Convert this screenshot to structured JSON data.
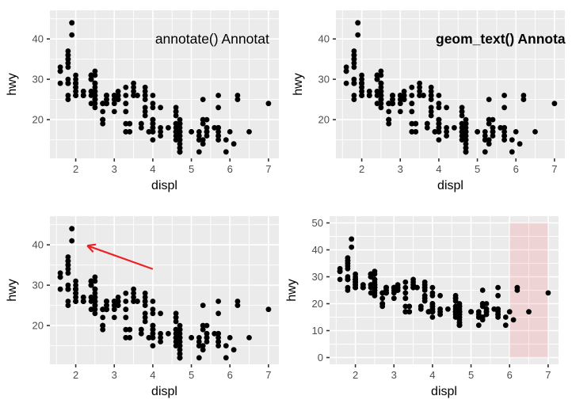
{
  "figure": {
    "description": "2x2 grid of ggplot-style scatterplots of engine displacement vs highway mpg with different annotation methods",
    "colors": {
      "panel_bg": "#EBEBEB",
      "grid": "#FFFFFF",
      "point": "#000000",
      "tick_label": "#4D4D4D",
      "tick_mark": "#333333",
      "axis_title": "#000000",
      "annotation_red": "#ED2224",
      "shade_fill": "#FF0000",
      "shade_opacity": 0.1
    }
  },
  "chart_data": {
    "type": "scatter",
    "points": {
      "displ": [
        1.8,
        1.8,
        2.0,
        2.0,
        2.8,
        2.8,
        3.1,
        1.8,
        1.8,
        2.0,
        2.0,
        2.8,
        2.8,
        3.1,
        2.8,
        3.1,
        4.2,
        5.3,
        5.3,
        5.3,
        5.7,
        6.0,
        5.7,
        5.7,
        6.2,
        6.2,
        7.0,
        5.3,
        5.3,
        5.7,
        6.5,
        2.4,
        2.4,
        3.1,
        3.5,
        3.6,
        2.4,
        3.0,
        3.3,
        3.3,
        3.3,
        3.3,
        3.3,
        3.8,
        3.8,
        3.8,
        4.0,
        3.7,
        3.7,
        3.9,
        3.9,
        4.7,
        4.7,
        4.7,
        5.2,
        5.2,
        3.9,
        4.7,
        4.7,
        4.7,
        4.7,
        4.7,
        5.2,
        5.7,
        5.9,
        4.7,
        4.7,
        4.7,
        4.7,
        4.7,
        4.7,
        4.7,
        4.7,
        5.2,
        5.2,
        5.7,
        5.9,
        4.6,
        5.4,
        5.4,
        4.0,
        4.0,
        4.0,
        4.0,
        4.6,
        5.0,
        4.2,
        4.2,
        4.6,
        4.6,
        4.6,
        4.6,
        5.4,
        3.8,
        3.8,
        4.0,
        4.0,
        4.6,
        4.6,
        4.6,
        4.6,
        5.4,
        1.6,
        1.6,
        1.6,
        1.6,
        1.6,
        1.8,
        1.8,
        1.8,
        2.0,
        2.4,
        2.4,
        2.4,
        2.4,
        2.5,
        2.5,
        3.3,
        2.0,
        2.0,
        2.0,
        2.0,
        2.7,
        2.7,
        2.7,
        3.0,
        3.7,
        4.0,
        4.7,
        4.7,
        4.7,
        5.7,
        6.1,
        4.0,
        4.2,
        4.4,
        4.6,
        5.4,
        5.4,
        5.4,
        4.0,
        4.0,
        4.6,
        5.0,
        2.4,
        2.4,
        2.5,
        2.5,
        3.5,
        3.5,
        3.0,
        3.0,
        3.5,
        3.3,
        3.3,
        4.0,
        5.6,
        3.1,
        3.8,
        3.8,
        3.8,
        5.3,
        2.5,
        2.5,
        2.5,
        2.5,
        2.5,
        2.5,
        2.2,
        2.2,
        2.5,
        2.5,
        2.5,
        2.5,
        2.5,
        2.5,
        2.7,
        2.7,
        2.7,
        3.4,
        3.4,
        4.0,
        4.7,
        2.2,
        2.2,
        2.4,
        2.4,
        3.0,
        3.0,
        3.5,
        2.2,
        2.2,
        2.4,
        2.4,
        3.0,
        3.3,
        1.8,
        1.8,
        1.8,
        1.8,
        1.8,
        4.7,
        5.7,
        2.7,
        2.7,
        2.7,
        3.4,
        3.4,
        4.0,
        4.0,
        2.0,
        2.0,
        2.0,
        2.0,
        2.8,
        1.9,
        2.0,
        2.0,
        2.0,
        2.0,
        2.5,
        2.5,
        2.8,
        2.8,
        1.9,
        1.9,
        2.0,
        2.0,
        2.5,
        2.5,
        1.8,
        1.8,
        2.0,
        2.0,
        2.8,
        2.8,
        3.6
      ],
      "hwy": [
        29,
        29,
        31,
        30,
        26,
        26,
        27,
        26,
        25,
        28,
        27,
        25,
        25,
        25,
        24,
        25,
        23,
        20,
        15,
        20,
        17,
        17,
        26,
        23,
        26,
        25,
        24,
        19,
        14,
        15,
        17,
        27,
        30,
        26,
        29,
        26,
        24,
        24,
        22,
        22,
        24,
        24,
        17,
        22,
        21,
        23,
        23,
        19,
        18,
        17,
        17,
        19,
        19,
        12,
        17,
        15,
        17,
        17,
        12,
        17,
        16,
        18,
        15,
        16,
        15,
        17,
        15,
        13,
        13,
        14,
        16,
        15,
        12,
        16,
        12,
        16,
        12,
        17,
        17,
        18,
        17,
        19,
        17,
        19,
        19,
        17,
        17,
        16,
        16,
        17,
        15,
        17,
        17,
        26,
        25,
        26,
        24,
        21,
        22,
        23,
        22,
        20,
        33,
        32,
        32,
        29,
        32,
        34,
        36,
        36,
        29,
        26,
        27,
        30,
        31,
        26,
        26,
        28,
        26,
        29,
        28,
        27,
        24,
        24,
        24,
        22,
        19,
        20,
        17,
        12,
        19,
        18,
        14,
        15,
        18,
        18,
        18,
        17,
        16,
        18,
        17,
        19,
        19,
        17,
        30,
        31,
        31,
        32,
        27,
        26,
        26,
        25,
        26,
        19,
        17,
        20,
        18,
        26,
        26,
        27,
        28,
        25,
        23,
        24,
        25,
        27,
        25,
        26,
        26,
        26,
        26,
        25,
        27,
        25,
        27,
        26,
        20,
        20,
        22,
        17,
        19,
        18,
        20,
        26,
        27,
        30,
        31,
        26,
        26,
        28,
        26,
        27,
        31,
        31,
        26,
        26,
        30,
        33,
        35,
        37,
        35,
        17,
        18,
        20,
        19,
        20,
        17,
        19,
        18,
        20,
        29,
        26,
        29,
        29,
        24,
        44,
        29,
        26,
        29,
        29,
        29,
        29,
        24,
        24,
        44,
        41,
        29,
        26,
        28,
        29,
        29,
        29,
        28,
        29,
        26,
        26,
        26
      ]
    },
    "panels": [
      {
        "name": "annotate-text-plot",
        "xlabel": "displ",
        "ylabel": "hwy",
        "xlim": [
          1.33,
          7.27
        ],
        "ylim": [
          10.4,
          47.1
        ],
        "xticks": [
          2,
          3,
          4,
          5,
          6,
          7
        ],
        "yticks": [
          20,
          30,
          40
        ],
        "x_minor": [
          1.5,
          2.5,
          3.5,
          4.5,
          5.5,
          6.5
        ],
        "y_minor": [
          15,
          25,
          35,
          45
        ],
        "annotation_text": {
          "label": "annotate() Annotat",
          "x": 4.06,
          "y": 40,
          "anchor": "start",
          "bold": false,
          "clipped": true
        }
      },
      {
        "name": "geom-text-plot",
        "xlabel": "displ",
        "ylabel": "hwy",
        "xlim": [
          1.33,
          7.27
        ],
        "ylim": [
          10.4,
          47.1
        ],
        "xticks": [
          2,
          3,
          4,
          5,
          6,
          7
        ],
        "yticks": [
          20,
          30,
          40
        ],
        "x_minor": [
          1.5,
          2.5,
          3.5,
          4.5,
          5.5,
          6.5
        ],
        "y_minor": [
          15,
          25,
          35,
          45
        ],
        "annotation_text": {
          "label": "geom_text() Annota",
          "x": 3.92,
          "y": 40,
          "anchor": "start",
          "bold": true,
          "clipped": false
        }
      },
      {
        "name": "arrow-annotation-plot",
        "xlabel": "displ",
        "ylabel": "hwy",
        "xlim": [
          1.33,
          7.27
        ],
        "ylim": [
          10.4,
          47.1
        ],
        "xticks": [
          2,
          3,
          4,
          5,
          6,
          7
        ],
        "yticks": [
          20,
          30,
          40
        ],
        "x_minor": [
          1.5,
          2.5,
          3.5,
          4.5,
          5.5,
          6.5
        ],
        "y_minor": [
          15,
          25,
          35,
          45
        ],
        "annotation_arrow": {
          "x_from": 4.0,
          "y_from": 34.0,
          "x_to": 2.3,
          "y_to": 39.8
        }
      },
      {
        "name": "shaded-rect-plot",
        "xlabel": "displ",
        "ylabel": "hwy",
        "xlim": [
          1.33,
          7.27
        ],
        "ylim": [
          -2.5,
          52.5
        ],
        "xticks": [
          2,
          3,
          4,
          5,
          6,
          7
        ],
        "yticks": [
          0,
          10,
          20,
          30,
          40,
          50
        ],
        "x_minor": [
          1.5,
          2.5,
          3.5,
          4.5,
          5.5,
          6.5
        ],
        "y_minor": [
          5,
          15,
          25,
          35,
          45
        ],
        "shade_rect": {
          "xmin": 6,
          "xmax": 7,
          "ymin": 0,
          "ymax": 50
        }
      }
    ]
  }
}
